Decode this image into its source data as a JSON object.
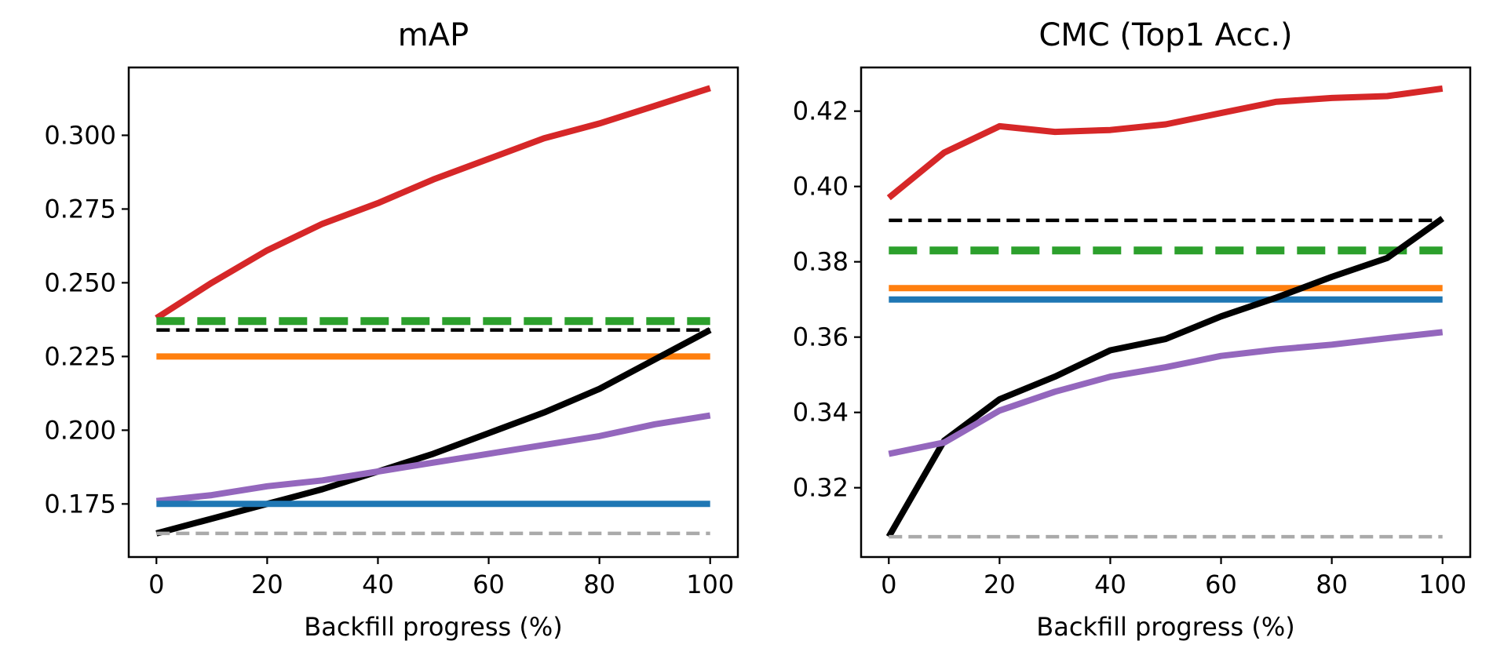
{
  "chart_data": [
    {
      "type": "line",
      "title": "mAP",
      "xlabel": "Backfill progress (%)",
      "ylabel": "",
      "xlim": [
        -5,
        105
      ],
      "ylim": [
        0.157,
        0.323
      ],
      "xticks": [
        0,
        20,
        40,
        60,
        80,
        100
      ],
      "xtick_labels": [
        "0",
        "20",
        "40",
        "60",
        "80",
        "100"
      ],
      "yticks": [
        0.175,
        0.2,
        0.225,
        0.25,
        0.275,
        0.3
      ],
      "ytick_labels": [
        "0.175",
        "0.200",
        "0.225",
        "0.250",
        "0.275",
        "0.300"
      ],
      "grid": false,
      "series": [
        {
          "color": "#d62728",
          "style": "solid",
          "width": 8,
          "x": [
            0,
            10,
            20,
            30,
            40,
            50,
            60,
            70,
            80,
            90,
            100
          ],
          "values": [
            0.238,
            0.25,
            0.261,
            0.27,
            0.277,
            0.285,
            0.292,
            0.299,
            0.304,
            0.31,
            0.316
          ]
        },
        {
          "color": "#2ca02c",
          "style": "dashed",
          "width": 10,
          "x": [
            0,
            100
          ],
          "values": [
            0.237,
            0.237
          ]
        },
        {
          "color": "#000000",
          "style": "dashed",
          "width": 4.5,
          "x": [
            0,
            100
          ],
          "values": [
            0.234,
            0.234
          ]
        },
        {
          "color": "#ff7f0e",
          "style": "solid",
          "width": 8,
          "x": [
            0,
            100
          ],
          "values": [
            0.225,
            0.225
          ]
        },
        {
          "color": "#000000",
          "style": "solid",
          "width": 8,
          "x": [
            0,
            10,
            20,
            30,
            40,
            50,
            60,
            70,
            80,
            90,
            100
          ],
          "values": [
            0.165,
            0.17,
            0.175,
            0.18,
            0.186,
            0.192,
            0.199,
            0.206,
            0.214,
            0.224,
            0.234
          ]
        },
        {
          "color": "#9467bd",
          "style": "solid",
          "width": 8,
          "x": [
            0,
            10,
            20,
            30,
            40,
            50,
            60,
            70,
            80,
            90,
            100
          ],
          "values": [
            0.176,
            0.178,
            0.181,
            0.183,
            0.186,
            0.189,
            0.192,
            0.195,
            0.198,
            0.202,
            0.205
          ]
        },
        {
          "color": "#1f77b4",
          "style": "solid",
          "width": 8,
          "x": [
            0,
            100
          ],
          "values": [
            0.175,
            0.175
          ]
        },
        {
          "color": "#aaaaaa",
          "style": "dashed",
          "width": 4.5,
          "x": [
            0,
            100
          ],
          "values": [
            0.165,
            0.165
          ]
        }
      ]
    },
    {
      "type": "line",
      "title": "CMC (Top1 Acc.)",
      "xlabel": "Backfill progress (%)",
      "ylabel": "",
      "xlim": [
        -5,
        105
      ],
      "ylim": [
        0.3016,
        0.4316
      ],
      "xticks": [
        0,
        20,
        40,
        60,
        80,
        100
      ],
      "xtick_labels": [
        "0",
        "20",
        "40",
        "60",
        "80",
        "100"
      ],
      "yticks": [
        0.32,
        0.34,
        0.36,
        0.38,
        0.4,
        0.42
      ],
      "ytick_labels": [
        "0.32",
        "0.34",
        "0.36",
        "0.38",
        "0.40",
        "0.42"
      ],
      "grid": false,
      "series": [
        {
          "color": "#d62728",
          "style": "solid",
          "width": 8,
          "x": [
            0,
            10,
            20,
            30,
            40,
            50,
            60,
            70,
            80,
            90,
            100
          ],
          "values": [
            0.397,
            0.409,
            0.416,
            0.4145,
            0.415,
            0.4165,
            0.4195,
            0.4225,
            0.4235,
            0.424,
            0.426
          ]
        },
        {
          "color": "#000000",
          "style": "dashed",
          "width": 4.5,
          "x": [
            0,
            100
          ],
          "values": [
            0.391,
            0.391
          ]
        },
        {
          "color": "#2ca02c",
          "style": "dashed",
          "width": 10,
          "x": [
            0,
            100
          ],
          "values": [
            0.383,
            0.383
          ]
        },
        {
          "color": "#ff7f0e",
          "style": "solid",
          "width": 8,
          "x": [
            0,
            100
          ],
          "values": [
            0.373,
            0.373
          ]
        },
        {
          "color": "#1f77b4",
          "style": "solid",
          "width": 8,
          "x": [
            0,
            100
          ],
          "values": [
            0.37,
            0.37
          ]
        },
        {
          "color": "#000000",
          "style": "solid",
          "width": 8,
          "x": [
            0,
            10,
            20,
            30,
            40,
            50,
            60,
            70,
            80,
            90,
            100
          ],
          "values": [
            0.307,
            0.3325,
            0.3435,
            0.3495,
            0.3565,
            0.3595,
            0.3655,
            0.3705,
            0.376,
            0.381,
            0.3915
          ]
        },
        {
          "color": "#9467bd",
          "style": "solid",
          "width": 8,
          "x": [
            0,
            10,
            20,
            30,
            40,
            50,
            60,
            70,
            80,
            90,
            100
          ],
          "values": [
            0.329,
            0.332,
            0.3405,
            0.3455,
            0.3495,
            0.352,
            0.355,
            0.3567,
            0.358,
            0.3597,
            0.3613
          ]
        },
        {
          "color": "#aaaaaa",
          "style": "dashed",
          "width": 4.5,
          "x": [
            0,
            100
          ],
          "values": [
            0.307,
            0.307
          ]
        }
      ]
    }
  ]
}
